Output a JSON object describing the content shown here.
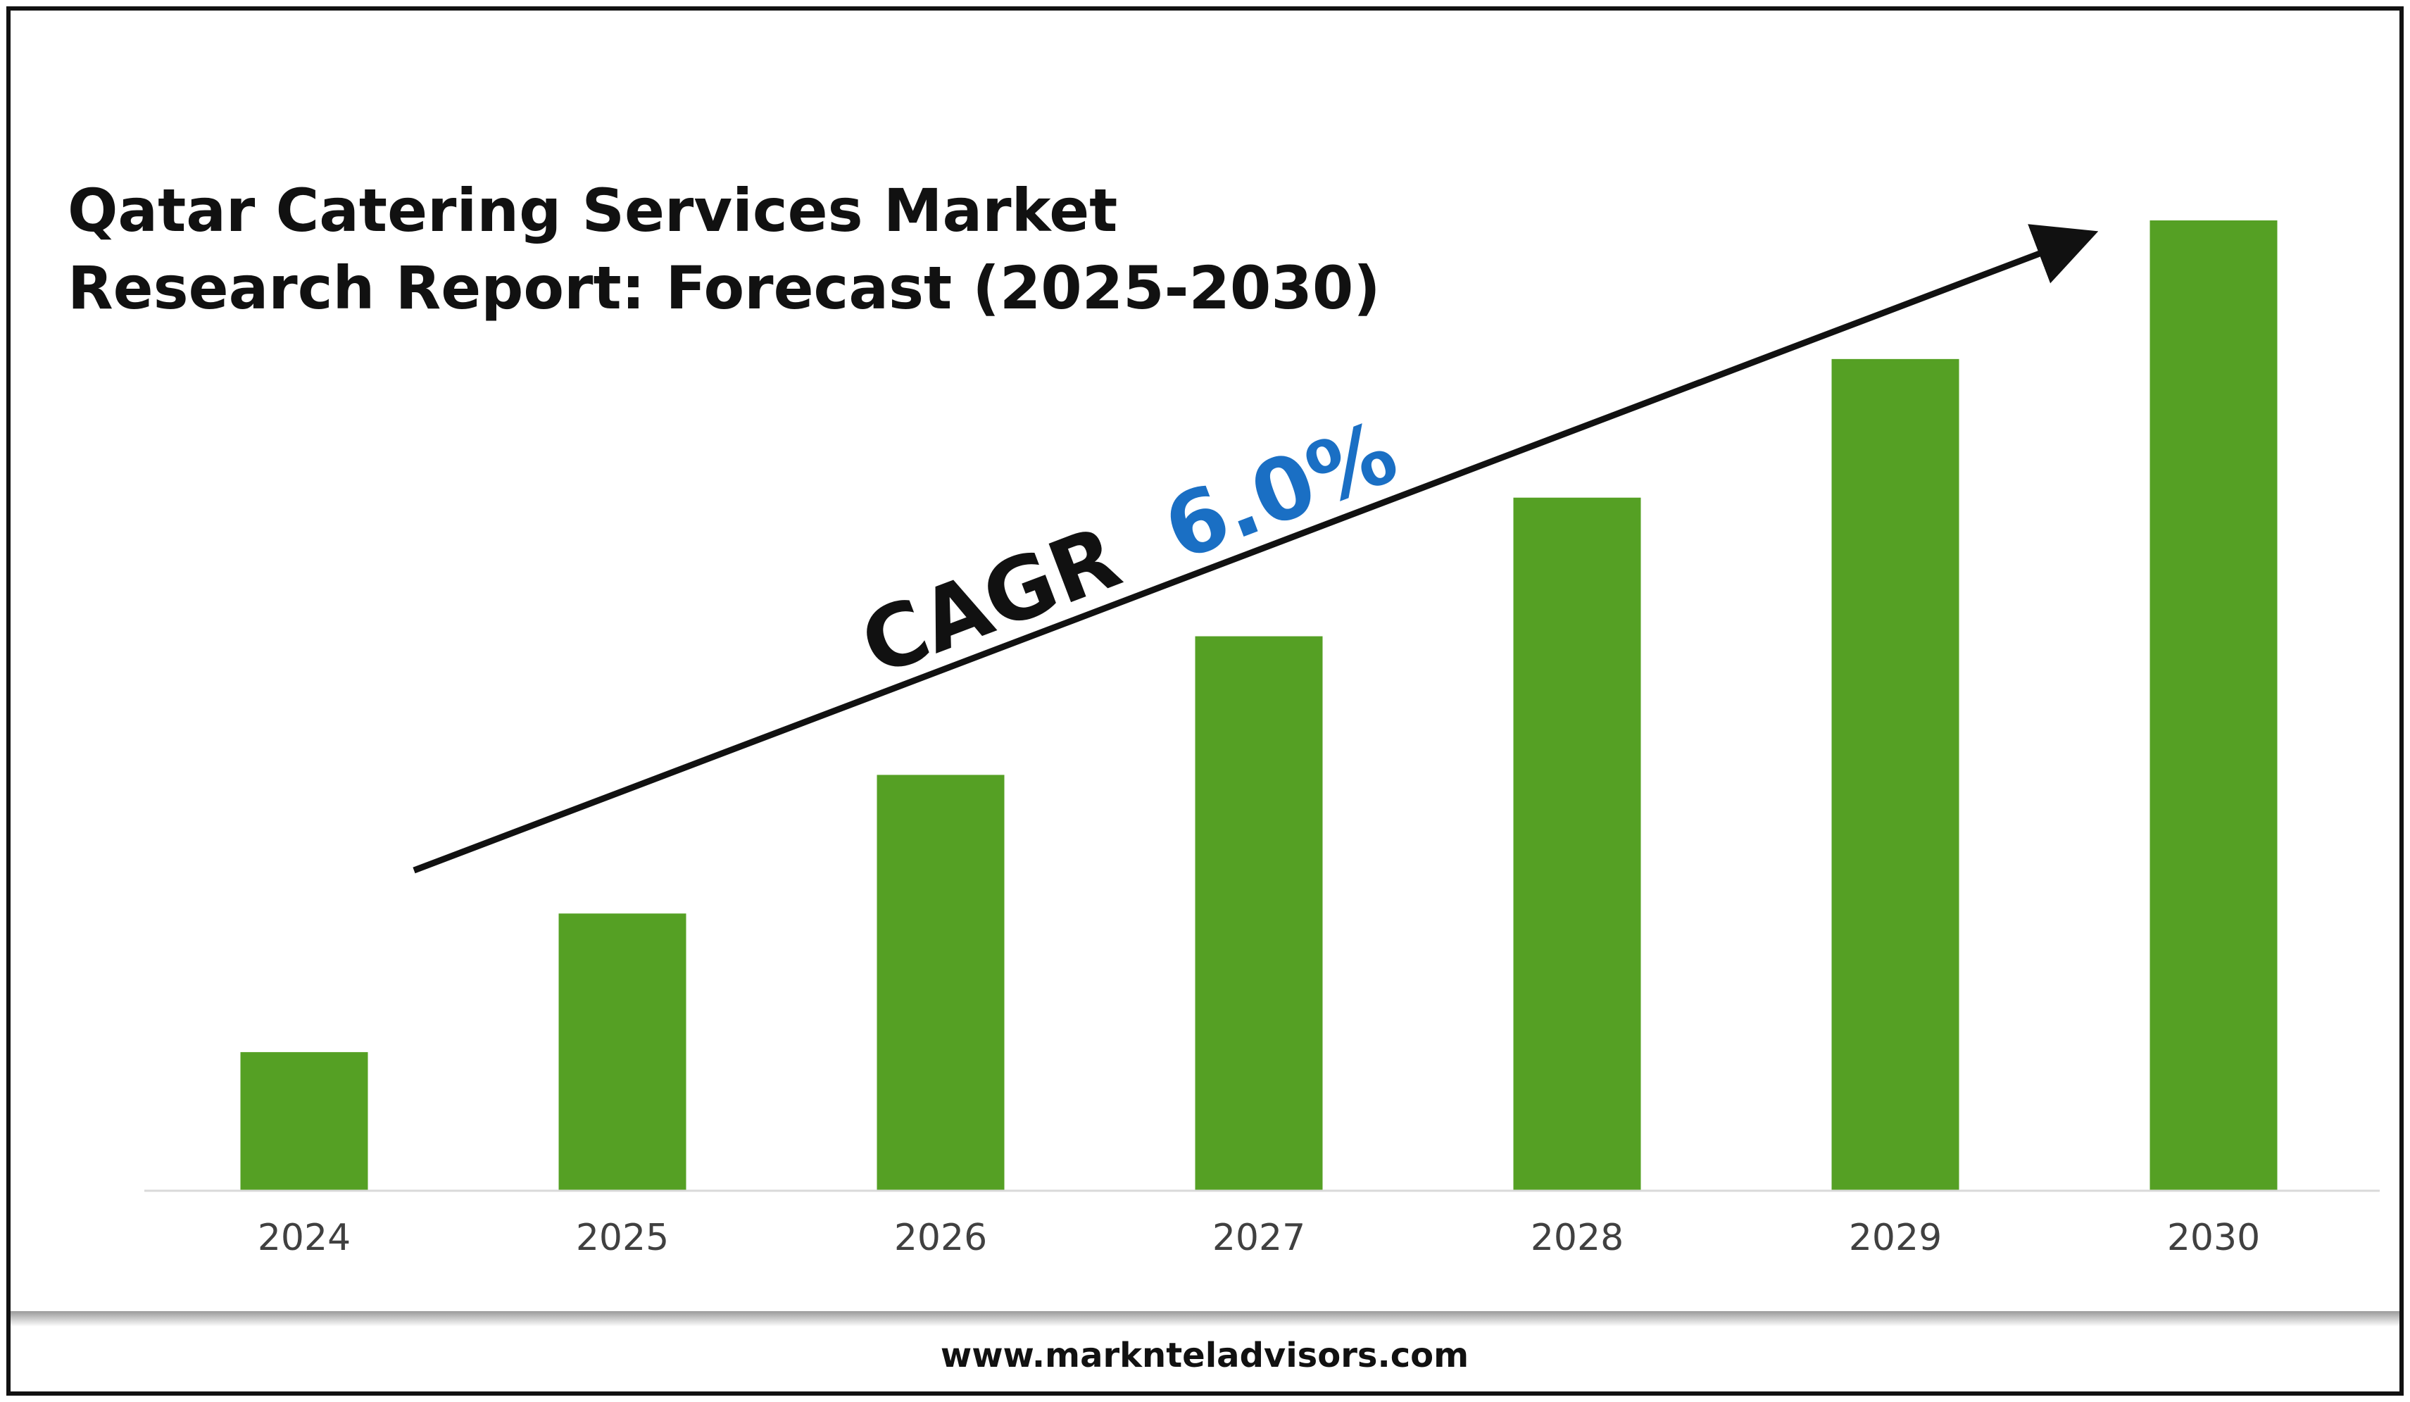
{
  "chart_data": {
    "type": "bar",
    "title": "Qatar Catering Services Market Research Report: Forecast (2025-2030)",
    "title_lines": [
      "Qatar Catering Services Market",
      "Research Report: Forecast (2025-2030)"
    ],
    "categories": [
      "2024",
      "2025",
      "2026",
      "2027",
      "2028",
      "2029",
      "2030"
    ],
    "values": [
      1,
      2,
      3,
      4,
      5,
      6,
      7
    ],
    "ylim": [
      0,
      7
    ],
    "xlabel": "",
    "ylabel": "",
    "grid": false,
    "bar_color": "#55a024",
    "annotation": {
      "label": "CAGR",
      "value": "6.0%",
      "value_color": "#1a6fc4"
    }
  },
  "footer": {
    "website": "www.marknteladvisors.com"
  }
}
